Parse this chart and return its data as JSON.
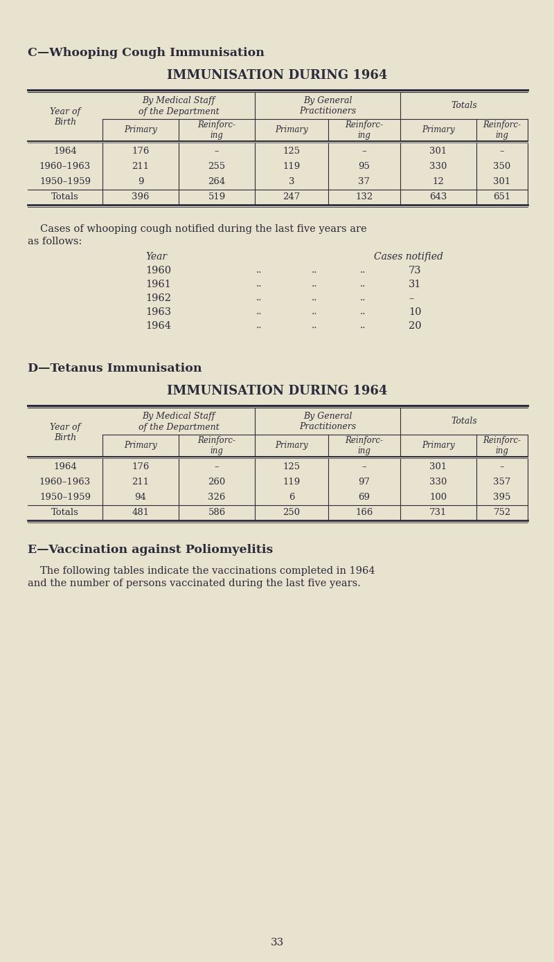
{
  "bg_color": "#e8e3ce",
  "text_color": "#2a2a3a",
  "page_number": "33",
  "section_c_title": "C—Whooping Cough Immunisation",
  "section_c_subtitle": "IMMUNISATION DURING 1964",
  "table_c_col_groups": [
    "By Medical Staff\nof the Department",
    "By General\nPractitioners",
    "Totals"
  ],
  "table_c_row_labels": [
    "1964",
    "1960–1963",
    "1950–1959",
    "Totals"
  ],
  "table_c_data": [
    [
      "176",
      "–",
      "125",
      "–",
      "301",
      "–"
    ],
    [
      "211",
      "255",
      "119",
      "95",
      "330",
      "350"
    ],
    [
      "9",
      "264",
      "3",
      "37",
      "12",
      "301"
    ],
    [
      "396",
      "519",
      "247",
      "132",
      "643",
      "651"
    ]
  ],
  "cases_line1": "Cases of whooping cough notified during the last five years are",
  "cases_line2": "as follows:",
  "cases_year_header": "Year",
  "cases_notified_header": "Cases notified",
  "cases_years": [
    "1960",
    "1961",
    "1962",
    "1963",
    "1964"
  ],
  "cases_values": [
    "73",
    "31",
    "–",
    "10",
    "20"
  ],
  "section_d_title": "D—Tetanus Immunisation",
  "section_d_subtitle": "IMMUNISATION DURING 1964",
  "table_d_col_groups": [
    "By Medical Staff\nof the Department",
    "By General\nPractitioners",
    "Totals"
  ],
  "table_d_row_labels": [
    "1964",
    "1960–1963",
    "1950–1959",
    "Totals"
  ],
  "table_d_data": [
    [
      "176",
      "–",
      "125",
      "–",
      "301",
      "–"
    ],
    [
      "211",
      "260",
      "119",
      "97",
      "330",
      "357"
    ],
    [
      "94",
      "326",
      "6",
      "69",
      "100",
      "395"
    ],
    [
      "481",
      "586",
      "250",
      "166",
      "731",
      "752"
    ]
  ],
  "section_e_title": "E—Vaccination against Poliomyelitis",
  "section_e_text1": "The following tables indicate the vaccinations completed in 1964",
  "section_e_text2": "and the number of persons vaccinated during the last five years."
}
